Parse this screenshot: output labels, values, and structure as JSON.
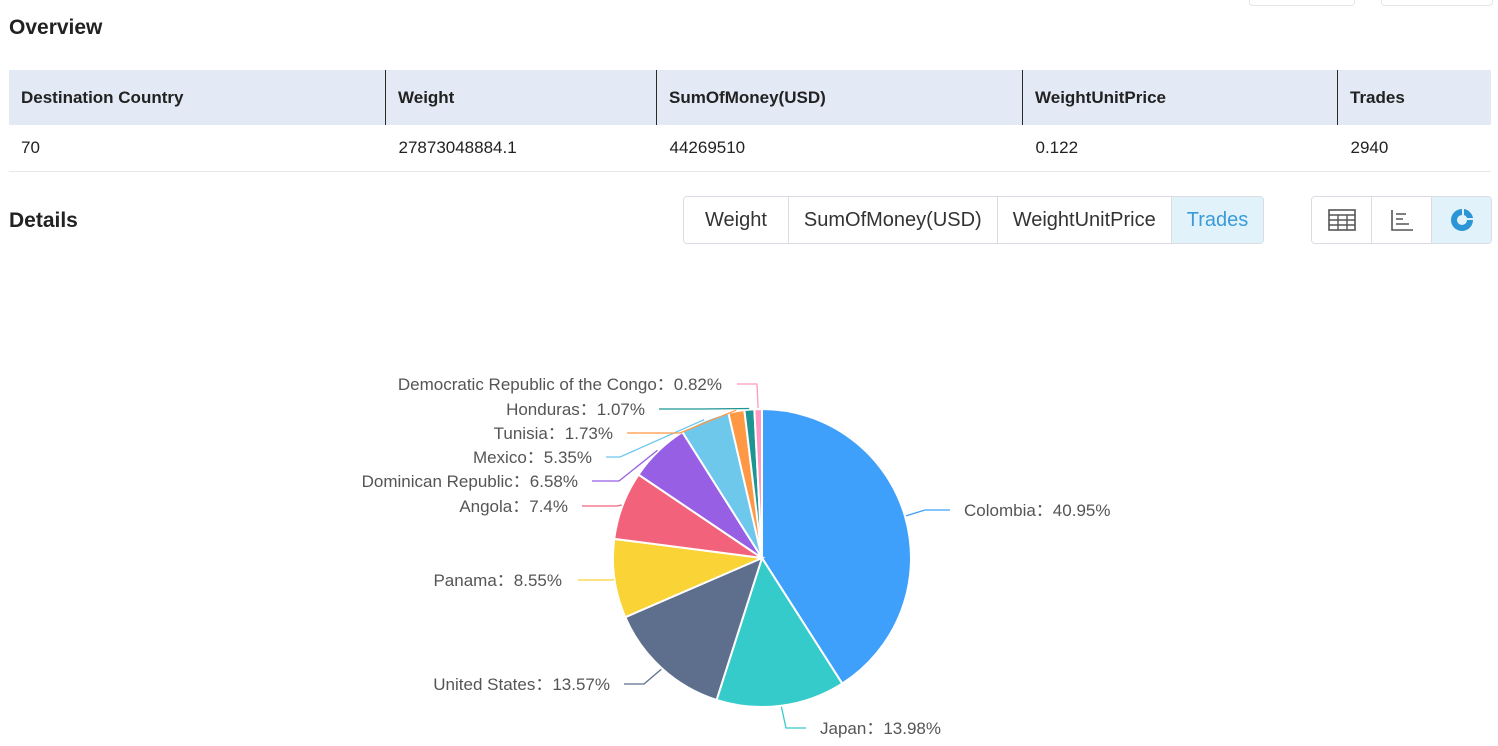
{
  "overview": {
    "title": "Overview",
    "headers": [
      "Destination Country",
      "Weight",
      "SumOfMoney(USD)",
      "WeightUnitPrice",
      "Trades"
    ],
    "row": [
      "70",
      "27873048884.1",
      "44269510",
      "0.122",
      "2940"
    ]
  },
  "details": {
    "title": "Details",
    "metric_tabs": [
      "Weight",
      "SumOfMoney(USD)",
      "WeightUnitPrice",
      "Trades"
    ],
    "active_tab": "Trades",
    "view_buttons": [
      "table-view-icon",
      "bar-chart-icon",
      "pie-chart-icon"
    ],
    "active_view": "pie-chart-icon"
  },
  "chart_data": {
    "type": "pie",
    "categories": [
      "Colombia",
      "Japan",
      "United States",
      "Panama",
      "Angola",
      "Dominican Republic",
      "Mexico",
      "Tunisia",
      "Honduras",
      "Democratic Republic of the Congo"
    ],
    "values": [
      40.95,
      13.98,
      13.57,
      8.55,
      7.4,
      6.58,
      5.35,
      1.73,
      1.07,
      0.82
    ],
    "labels": [
      "Colombia：40.95%",
      "Japan：13.98%",
      "United States：13.57%",
      "Panama：8.55%",
      "Angola：7.4%",
      "Dominican Republic：6.58%",
      "Mexico：5.35%",
      "Tunisia：1.73%",
      "Honduras：1.07%",
      "Democratic Republic of the Congo：0.82%"
    ],
    "colors": [
      "#3fa0fb",
      "#36cbcb",
      "#5e6f8e",
      "#fad337",
      "#f2637b",
      "#975fe4",
      "#6dc8ec",
      "#ff9845",
      "#1e9493",
      "#ff99c3"
    ]
  }
}
